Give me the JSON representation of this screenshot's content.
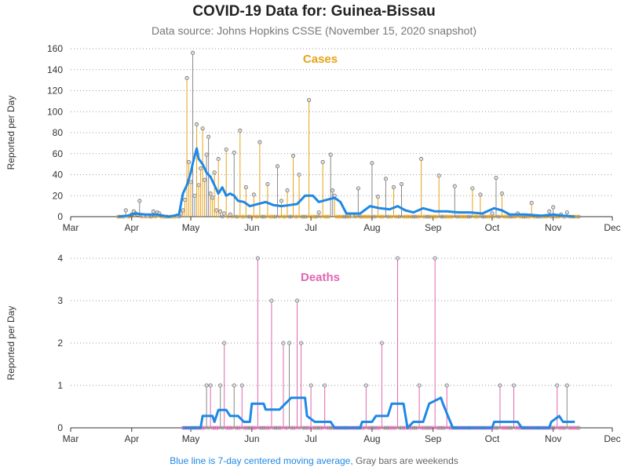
{
  "title": "COVID-19 Data for: Guinea-Bissau",
  "subtitle": "Data source: Johns Hopkins CSSE (November 15, 2020 snapshot)",
  "footer": {
    "blue_text": "Blue line is 7-day centered moving average,",
    "gray_text": "Gray bars are weekends"
  },
  "colors": {
    "cases": "#e8a317",
    "deaths": "#e066b0",
    "weekend": "#888888",
    "average": "#1e88e5",
    "grid": "#999999"
  },
  "chart_data": [
    {
      "type": "bar",
      "title": "Cases",
      "ylabel": "Reported per Day",
      "ylim": [
        0,
        160
      ],
      "yticks": [
        0,
        20,
        40,
        60,
        80,
        100,
        120,
        140,
        160
      ],
      "x_labels": [
        "Mar",
        "Apr",
        "May",
        "Jun",
        "Jul",
        "Aug",
        "Sep",
        "Oct",
        "Nov",
        "Dec"
      ],
      "x_range": [
        "2020-03-01",
        "2020-12-01"
      ],
      "date_start": "2020-03-25",
      "date_end": "2020-11-14",
      "grid": "horizontal dotted",
      "spikes": [
        {
          "date": "2020-03-29",
          "value": 6
        },
        {
          "date": "2020-04-01",
          "value": 2
        },
        {
          "date": "2020-04-02",
          "value": 5
        },
        {
          "date": "2020-04-03",
          "value": 3
        },
        {
          "date": "2020-04-04",
          "value": 2
        },
        {
          "date": "2020-04-05",
          "value": 15
        },
        {
          "date": "2020-04-07",
          "value": 1
        },
        {
          "date": "2020-04-09",
          "value": 1
        },
        {
          "date": "2020-04-12",
          "value": 5
        },
        {
          "date": "2020-04-14",
          "value": 4
        },
        {
          "date": "2020-04-15",
          "value": 3
        },
        {
          "date": "2020-04-24",
          "value": 1
        },
        {
          "date": "2020-04-26",
          "value": 3
        },
        {
          "date": "2020-04-27",
          "value": 6
        },
        {
          "date": "2020-04-28",
          "value": 16
        },
        {
          "date": "2020-04-29",
          "value": 132
        },
        {
          "date": "2020-04-30",
          "value": 52
        },
        {
          "date": "2020-05-01",
          "value": 33
        },
        {
          "date": "2020-05-02",
          "value": 156
        },
        {
          "date": "2020-05-03",
          "value": 20
        },
        {
          "date": "2020-05-04",
          "value": 88
        },
        {
          "date": "2020-05-05",
          "value": 30
        },
        {
          "date": "2020-05-06",
          "value": 46
        },
        {
          "date": "2020-05-07",
          "value": 84
        },
        {
          "date": "2020-05-08",
          "value": 35
        },
        {
          "date": "2020-05-09",
          "value": 59
        },
        {
          "date": "2020-05-10",
          "value": 76
        },
        {
          "date": "2020-05-11",
          "value": 22
        },
        {
          "date": "2020-05-12",
          "value": 18
        },
        {
          "date": "2020-05-13",
          "value": 42
        },
        {
          "date": "2020-05-14",
          "value": 6
        },
        {
          "date": "2020-05-15",
          "value": 55
        },
        {
          "date": "2020-05-16",
          "value": 5
        },
        {
          "date": "2020-05-18",
          "value": 3
        },
        {
          "date": "2020-05-19",
          "value": 64
        },
        {
          "date": "2020-05-21",
          "value": 2
        },
        {
          "date": "2020-05-23",
          "value": 61
        },
        {
          "date": "2020-05-26",
          "value": 82
        },
        {
          "date": "2020-05-29",
          "value": 28
        },
        {
          "date": "2020-06-02",
          "value": 21
        },
        {
          "date": "2020-06-05",
          "value": 71
        },
        {
          "date": "2020-06-09",
          "value": 31
        },
        {
          "date": "2020-06-14",
          "value": 48
        },
        {
          "date": "2020-06-16",
          "value": 15
        },
        {
          "date": "2020-06-19",
          "value": 25
        },
        {
          "date": "2020-06-22",
          "value": 58
        },
        {
          "date": "2020-06-25",
          "value": 40
        },
        {
          "date": "2020-06-30",
          "value": 111
        },
        {
          "date": "2020-07-05",
          "value": 4
        },
        {
          "date": "2020-07-07",
          "value": 52
        },
        {
          "date": "2020-07-11",
          "value": 59
        },
        {
          "date": "2020-07-12",
          "value": 25
        },
        {
          "date": "2020-07-13",
          "value": 20
        },
        {
          "date": "2020-07-22",
          "value": 1
        },
        {
          "date": "2020-07-25",
          "value": 27
        },
        {
          "date": "2020-08-01",
          "value": 51
        },
        {
          "date": "2020-08-04",
          "value": 19
        },
        {
          "date": "2020-08-08",
          "value": 36
        },
        {
          "date": "2020-08-12",
          "value": 28
        },
        {
          "date": "2020-08-16",
          "value": 31
        },
        {
          "date": "2020-08-26",
          "value": 55
        },
        {
          "date": "2020-09-04",
          "value": 39
        },
        {
          "date": "2020-09-12",
          "value": 29
        },
        {
          "date": "2020-09-21",
          "value": 27
        },
        {
          "date": "2020-09-25",
          "value": 21
        },
        {
          "date": "2020-10-01",
          "value": 3
        },
        {
          "date": "2020-10-03",
          "value": 37
        },
        {
          "date": "2020-10-06",
          "value": 22
        },
        {
          "date": "2020-10-14",
          "value": 3
        },
        {
          "date": "2020-10-21",
          "value": 13
        },
        {
          "date": "2020-10-30",
          "value": 5
        },
        {
          "date": "2020-11-01",
          "value": 9
        },
        {
          "date": "2020-11-05",
          "value": 2
        },
        {
          "date": "2020-11-08",
          "value": 4
        }
      ],
      "moving_average": [
        {
          "date": "2020-03-25",
          "value": 0
        },
        {
          "date": "2020-03-30",
          "value": 1
        },
        {
          "date": "2020-04-03",
          "value": 3
        },
        {
          "date": "2020-04-08",
          "value": 2
        },
        {
          "date": "2020-04-14",
          "value": 2
        },
        {
          "date": "2020-04-20",
          "value": 0
        },
        {
          "date": "2020-04-25",
          "value": 2
        },
        {
          "date": "2020-04-27",
          "value": 22
        },
        {
          "date": "2020-04-29",
          "value": 30
        },
        {
          "date": "2020-05-01",
          "value": 42
        },
        {
          "date": "2020-05-02",
          "value": 51
        },
        {
          "date": "2020-05-04",
          "value": 65
        },
        {
          "date": "2020-05-05",
          "value": 55
        },
        {
          "date": "2020-05-07",
          "value": 50
        },
        {
          "date": "2020-05-09",
          "value": 42
        },
        {
          "date": "2020-05-11",
          "value": 38
        },
        {
          "date": "2020-05-13",
          "value": 30
        },
        {
          "date": "2020-05-15",
          "value": 22
        },
        {
          "date": "2020-05-17",
          "value": 28
        },
        {
          "date": "2020-05-19",
          "value": 20
        },
        {
          "date": "2020-05-21",
          "value": 22
        },
        {
          "date": "2020-05-23",
          "value": 20
        },
        {
          "date": "2020-05-25",
          "value": 15
        },
        {
          "date": "2020-05-28",
          "value": 14
        },
        {
          "date": "2020-05-31",
          "value": 10
        },
        {
          "date": "2020-06-04",
          "value": 12
        },
        {
          "date": "2020-06-08",
          "value": 14
        },
        {
          "date": "2020-06-12",
          "value": 11
        },
        {
          "date": "2020-06-16",
          "value": 10
        },
        {
          "date": "2020-06-20",
          "value": 11
        },
        {
          "date": "2020-06-24",
          "value": 12
        },
        {
          "date": "2020-06-28",
          "value": 20
        },
        {
          "date": "2020-07-02",
          "value": 20
        },
        {
          "date": "2020-07-05",
          "value": 14
        },
        {
          "date": "2020-07-09",
          "value": 16
        },
        {
          "date": "2020-07-13",
          "value": 18
        },
        {
          "date": "2020-07-16",
          "value": 14
        },
        {
          "date": "2020-07-19",
          "value": 3
        },
        {
          "date": "2020-07-26",
          "value": 3
        },
        {
          "date": "2020-07-31",
          "value": 10
        },
        {
          "date": "2020-08-05",
          "value": 8
        },
        {
          "date": "2020-08-10",
          "value": 7
        },
        {
          "date": "2020-08-14",
          "value": 10
        },
        {
          "date": "2020-08-18",
          "value": 6
        },
        {
          "date": "2020-08-22",
          "value": 4
        },
        {
          "date": "2020-08-27",
          "value": 8
        },
        {
          "date": "2020-09-02",
          "value": 5
        },
        {
          "date": "2020-09-08",
          "value": 5
        },
        {
          "date": "2020-09-14",
          "value": 4
        },
        {
          "date": "2020-09-20",
          "value": 4
        },
        {
          "date": "2020-09-26",
          "value": 3
        },
        {
          "date": "2020-10-02",
          "value": 8
        },
        {
          "date": "2020-10-06",
          "value": 6
        },
        {
          "date": "2020-10-10",
          "value": 2
        },
        {
          "date": "2020-10-18",
          "value": 2
        },
        {
          "date": "2020-10-26",
          "value": 1
        },
        {
          "date": "2020-11-01",
          "value": 2
        },
        {
          "date": "2020-11-06",
          "value": 1
        },
        {
          "date": "2020-11-12",
          "value": 0
        }
      ]
    },
    {
      "type": "bar",
      "title": "Deaths",
      "ylabel": "Reported per Day",
      "ylim": [
        0,
        4
      ],
      "yticks": [
        0,
        1,
        2,
        3,
        4
      ],
      "x_labels": [
        "Mar",
        "Apr",
        "May",
        "Jun",
        "Jul",
        "Aug",
        "Sep",
        "Oct",
        "Nov",
        "Dec"
      ],
      "x_range": [
        "2020-03-01",
        "2020-12-01"
      ],
      "date_start": "2020-04-27",
      "date_end": "2020-11-14",
      "grid": "horizontal dotted",
      "spikes": [
        {
          "date": "2020-05-09",
          "value": 1
        },
        {
          "date": "2020-05-11",
          "value": 1
        },
        {
          "date": "2020-05-16",
          "value": 1
        },
        {
          "date": "2020-05-18",
          "value": 2
        },
        {
          "date": "2020-05-23",
          "value": 1
        },
        {
          "date": "2020-05-27",
          "value": 1
        },
        {
          "date": "2020-06-04",
          "value": 4
        },
        {
          "date": "2020-06-11",
          "value": 3
        },
        {
          "date": "2020-06-17",
          "value": 2
        },
        {
          "date": "2020-06-20",
          "value": 2
        },
        {
          "date": "2020-06-24",
          "value": 3
        },
        {
          "date": "2020-06-26",
          "value": 2
        },
        {
          "date": "2020-07-01",
          "value": 1
        },
        {
          "date": "2020-07-08",
          "value": 1
        },
        {
          "date": "2020-07-29",
          "value": 1
        },
        {
          "date": "2020-08-06",
          "value": 2
        },
        {
          "date": "2020-08-14",
          "value": 4
        },
        {
          "date": "2020-08-25",
          "value": 1
        },
        {
          "date": "2020-09-02",
          "value": 4
        },
        {
          "date": "2020-09-08",
          "value": 1
        },
        {
          "date": "2020-10-05",
          "value": 1
        },
        {
          "date": "2020-10-12",
          "value": 1
        },
        {
          "date": "2020-11-03",
          "value": 1
        },
        {
          "date": "2020-11-08",
          "value": 1
        }
      ],
      "moving_average": [
        {
          "date": "2020-04-27",
          "value": 0
        },
        {
          "date": "2020-05-06",
          "value": 0
        },
        {
          "date": "2020-05-07",
          "value": 0.28
        },
        {
          "date": "2020-05-12",
          "value": 0.28
        },
        {
          "date": "2020-05-13",
          "value": 0.14
        },
        {
          "date": "2020-05-15",
          "value": 0.42
        },
        {
          "date": "2020-05-19",
          "value": 0.42
        },
        {
          "date": "2020-05-21",
          "value": 0.28
        },
        {
          "date": "2020-05-25",
          "value": 0.28
        },
        {
          "date": "2020-05-28",
          "value": 0.14
        },
        {
          "date": "2020-05-31",
          "value": 0.14
        },
        {
          "date": "2020-06-01",
          "value": 0.57
        },
        {
          "date": "2020-06-07",
          "value": 0.57
        },
        {
          "date": "2020-06-08",
          "value": 0.43
        },
        {
          "date": "2020-06-15",
          "value": 0.43
        },
        {
          "date": "2020-06-18",
          "value": 0.57
        },
        {
          "date": "2020-06-21",
          "value": 0.71
        },
        {
          "date": "2020-06-28",
          "value": 0.71
        },
        {
          "date": "2020-06-29",
          "value": 0.28
        },
        {
          "date": "2020-07-03",
          "value": 0.14
        },
        {
          "date": "2020-07-11",
          "value": 0.14
        },
        {
          "date": "2020-07-13",
          "value": 0
        },
        {
          "date": "2020-07-26",
          "value": 0
        },
        {
          "date": "2020-07-27",
          "value": 0.14
        },
        {
          "date": "2020-08-01",
          "value": 0.14
        },
        {
          "date": "2020-08-03",
          "value": 0.28
        },
        {
          "date": "2020-08-09",
          "value": 0.28
        },
        {
          "date": "2020-08-11",
          "value": 0.57
        },
        {
          "date": "2020-08-17",
          "value": 0.57
        },
        {
          "date": "2020-08-19",
          "value": 0
        },
        {
          "date": "2020-08-22",
          "value": 0.14
        },
        {
          "date": "2020-08-27",
          "value": 0.14
        },
        {
          "date": "2020-08-30",
          "value": 0.57
        },
        {
          "date": "2020-09-05",
          "value": 0.71
        },
        {
          "date": "2020-09-06",
          "value": 0.57
        },
        {
          "date": "2020-09-11",
          "value": 0
        },
        {
          "date": "2020-10-01",
          "value": 0
        },
        {
          "date": "2020-10-02",
          "value": 0.14
        },
        {
          "date": "2020-10-14",
          "value": 0.14
        },
        {
          "date": "2020-10-16",
          "value": 0
        },
        {
          "date": "2020-10-30",
          "value": 0
        },
        {
          "date": "2020-10-31",
          "value": 0.14
        },
        {
          "date": "2020-11-04",
          "value": 0.28
        },
        {
          "date": "2020-11-06",
          "value": 0.14
        },
        {
          "date": "2020-11-12",
          "value": 0.14
        }
      ]
    }
  ]
}
